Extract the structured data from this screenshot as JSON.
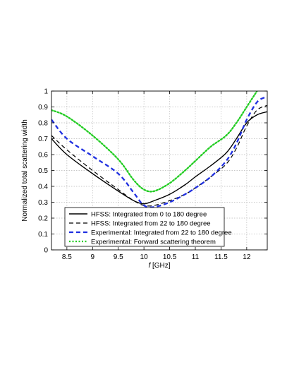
{
  "chart_data": {
    "type": "line",
    "title": "",
    "xlabel_prefix": "f",
    "xlabel_suffix": " [GHz]",
    "ylabel": "Normalized total scattering width",
    "xlim": [
      8.2,
      12.4
    ],
    "ylim": [
      0,
      1
    ],
    "xticks": [
      8.5,
      9,
      9.5,
      10,
      10.5,
      11,
      11.5,
      12
    ],
    "xtick_labels": [
      "8.5",
      "9",
      "9.5",
      "10",
      "10.5",
      "11",
      "11.5",
      "12"
    ],
    "yticks": [
      0,
      0.1,
      0.2,
      0.3,
      0.4,
      0.5,
      0.6,
      0.7,
      0.8,
      0.9,
      1
    ],
    "ytick_labels": [
      "0",
      "0.1",
      "0.2",
      "0.3",
      "0.4",
      "0.5",
      "0.6",
      "0.7",
      "0.8",
      "0.9",
      "1"
    ],
    "grid": true,
    "legend_position": "bottom-center",
    "series": [
      {
        "name": "HFSS: Integrated from 0 to 180 degree",
        "color": "#000000",
        "style": "solid",
        "x": [
          8.2,
          8.5,
          9.0,
          9.5,
          9.8,
          10.0,
          10.2,
          10.5,
          10.8,
          11.0,
          11.3,
          11.6,
          11.8,
          12.0,
          12.2,
          12.4
        ],
        "y": [
          0.7,
          0.6,
          0.48,
          0.37,
          0.31,
          0.29,
          0.31,
          0.35,
          0.41,
          0.46,
          0.53,
          0.61,
          0.7,
          0.8,
          0.85,
          0.87
        ]
      },
      {
        "name": "HFSS: Integrated from 22 to 180 degree",
        "color": "#000000",
        "style": "dashed",
        "x": [
          8.2,
          8.5,
          9.0,
          9.5,
          9.8,
          10.0,
          10.2,
          10.5,
          10.8,
          11.0,
          11.3,
          11.6,
          11.8,
          12.0,
          12.2,
          12.4
        ],
        "y": [
          0.72,
          0.63,
          0.5,
          0.38,
          0.31,
          0.28,
          0.28,
          0.31,
          0.35,
          0.39,
          0.46,
          0.54,
          0.64,
          0.78,
          0.88,
          0.91
        ]
      },
      {
        "name": "Experimental: Integrated from 22 to 180 degree",
        "color": "#1f2fe0",
        "style": "dashed",
        "x": [
          8.2,
          8.5,
          9.0,
          9.5,
          9.8,
          10.0,
          10.2,
          10.5,
          10.8,
          11.0,
          11.3,
          11.6,
          11.8,
          12.0,
          12.2,
          12.35
        ],
        "y": [
          0.82,
          0.7,
          0.59,
          0.48,
          0.36,
          0.28,
          0.27,
          0.3,
          0.35,
          0.39,
          0.46,
          0.56,
          0.67,
          0.82,
          0.93,
          0.96
        ]
      },
      {
        "name": "Experimental: Forward scattering theorem",
        "color": "#22cc22",
        "style": "dotted",
        "x": [
          8.2,
          8.5,
          9.0,
          9.5,
          9.8,
          10.0,
          10.2,
          10.5,
          10.8,
          11.0,
          11.3,
          11.6,
          11.8,
          12.0,
          12.2
        ],
        "y": [
          0.88,
          0.84,
          0.72,
          0.57,
          0.44,
          0.38,
          0.37,
          0.42,
          0.5,
          0.56,
          0.65,
          0.72,
          0.8,
          0.9,
          1.0
        ]
      }
    ]
  }
}
